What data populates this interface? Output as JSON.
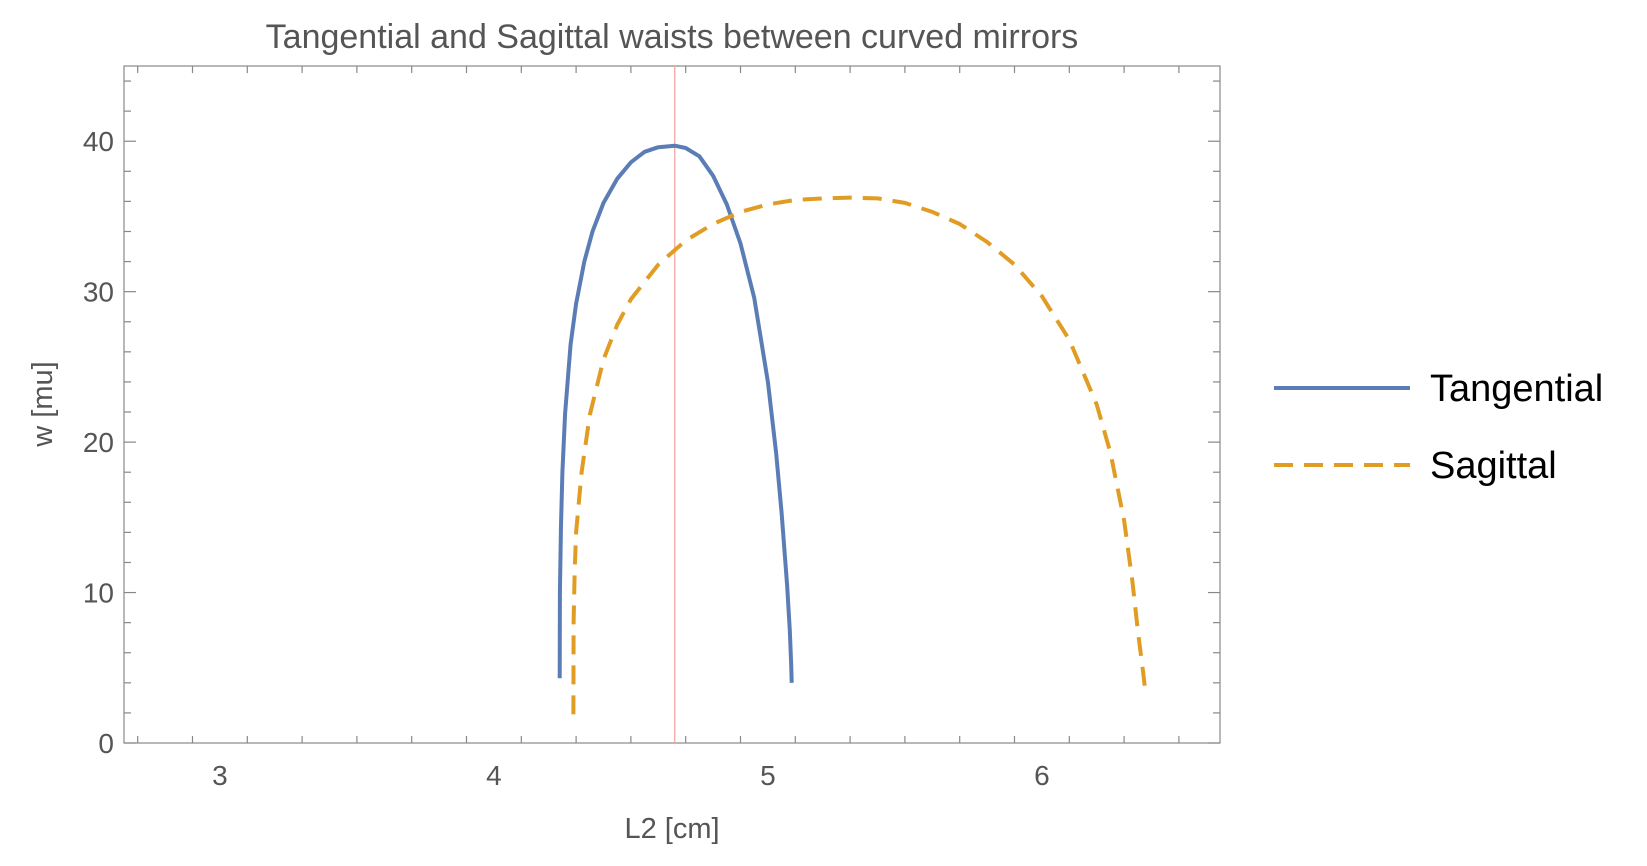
{
  "chart_data": {
    "type": "line",
    "title": "Tangential and Sagittal waists between curved mirrors",
    "xlabel": "L2 [cm]",
    "ylabel": "w [mu]",
    "xlim": [
      2.65,
      6.65
    ],
    "ylim": [
      0,
      45
    ],
    "x_ticks": [
      3,
      4,
      5,
      6
    ],
    "y_ticks": [
      0,
      10,
      20,
      30,
      40
    ],
    "grid": false,
    "legend_position": "right",
    "reference_line": {
      "x": 4.66,
      "color": "#f4a6a6"
    },
    "series": [
      {
        "name": "Tangential",
        "color": "#5b7db5",
        "style": "solid",
        "x": [
          4.24,
          4.241,
          4.245,
          4.25,
          4.26,
          4.28,
          4.3,
          4.33,
          4.36,
          4.4,
          4.45,
          4.5,
          4.55,
          4.6,
          4.66,
          4.7,
          4.75,
          4.8,
          4.85,
          4.9,
          4.95,
          5.0,
          5.03,
          5.05,
          5.07,
          5.08,
          5.085,
          5.087
        ],
        "y": [
          4.3,
          10.0,
          14.5,
          18.0,
          21.9,
          26.5,
          29.2,
          32.0,
          34.0,
          35.9,
          37.5,
          38.6,
          39.3,
          39.6,
          39.7,
          39.55,
          39.0,
          37.7,
          35.8,
          33.2,
          29.6,
          24.0,
          19.3,
          15.3,
          10.5,
          7.5,
          5.2,
          4.0
        ]
      },
      {
        "name": "Sagittal",
        "color": "#e19c24",
        "style": "dashed",
        "x": [
          4.29,
          4.291,
          4.295,
          4.3,
          4.32,
          4.35,
          4.4,
          4.45,
          4.5,
          4.6,
          4.7,
          4.8,
          4.9,
          5.0,
          5.1,
          5.2,
          5.3,
          5.4,
          5.5,
          5.6,
          5.7,
          5.8,
          5.9,
          6.0,
          6.1,
          6.2,
          6.25,
          6.3,
          6.33,
          6.35,
          6.37,
          6.375,
          6.378
        ],
        "y": [
          1.9,
          8.0,
          11.5,
          14.0,
          18.0,
          21.8,
          25.5,
          27.8,
          29.5,
          31.8,
          33.4,
          34.5,
          35.3,
          35.8,
          36.1,
          36.2,
          36.25,
          36.2,
          35.9,
          35.3,
          34.5,
          33.3,
          31.8,
          29.7,
          26.8,
          22.5,
          19.3,
          14.8,
          10.8,
          7.5,
          4.6,
          3.8,
          3.3
        ]
      }
    ]
  }
}
